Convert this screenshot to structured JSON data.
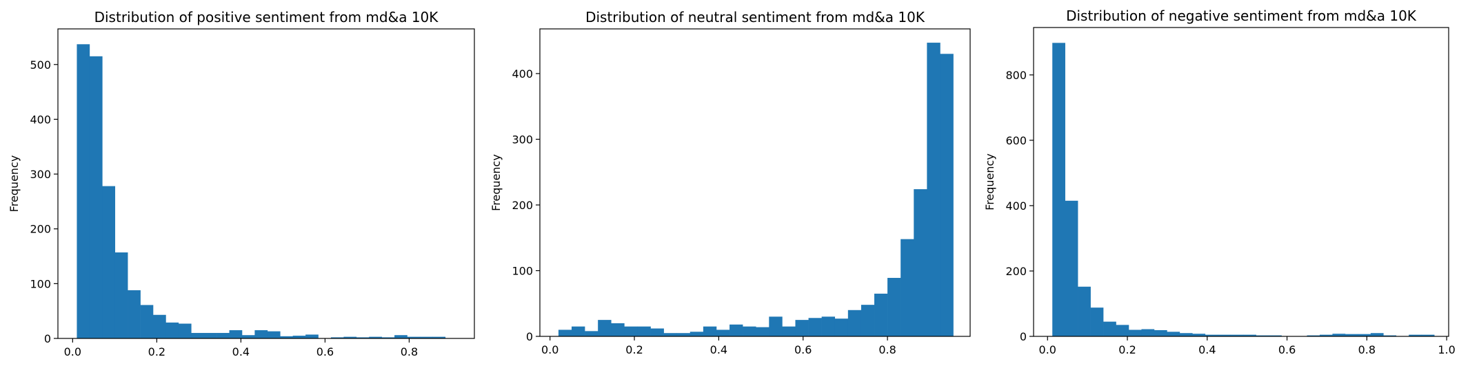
{
  "chart_data": [
    {
      "type": "bar",
      "title": "Distribution of positive sentiment from md&a 10K",
      "xlabel": "",
      "ylabel": "Frequency",
      "xlim": [
        -0.035,
        0.955
      ],
      "ylim": [
        0,
        565
      ],
      "bin_start": 0.01,
      "bin_width": 0.0302,
      "values": [
        537,
        515,
        278,
        157,
        88,
        61,
        43,
        29,
        27,
        10,
        10,
        10,
        15,
        6,
        15,
        13,
        4,
        5,
        7,
        0,
        2,
        3,
        2,
        3,
        2,
        6,
        3,
        3,
        3,
        0
      ],
      "xticks": [
        0.0,
        0.2,
        0.4,
        0.6,
        0.8
      ],
      "xtick_labels": [
        "0.0",
        "0.2",
        "0.4",
        "0.6",
        "0.8"
      ],
      "yticks": [
        0,
        100,
        200,
        300,
        400,
        500
      ],
      "ytick_labels": [
        "0",
        "100",
        "200",
        "300",
        "400",
        "500"
      ],
      "color": "#1f77b4"
    },
    {
      "type": "bar",
      "title": "Distribution of neutral sentiment from md&a 10K",
      "xlabel": "",
      "ylabel": "Frequency",
      "xlim": [
        -0.024,
        0.996
      ],
      "ylim": [
        0,
        468
      ],
      "bin_start": 0.02,
      "bin_width": 0.0312,
      "values": [
        10,
        15,
        8,
        25,
        20,
        15,
        15,
        12,
        5,
        5,
        7,
        15,
        10,
        18,
        15,
        14,
        30,
        15,
        25,
        28,
        30,
        27,
        40,
        48,
        65,
        89,
        148,
        224,
        447,
        430
      ],
      "xticks": [
        0.0,
        0.2,
        0.4,
        0.6,
        0.8
      ],
      "xtick_labels": [
        "0.0",
        "0.2",
        "0.4",
        "0.6",
        "0.8"
      ],
      "yticks": [
        0,
        100,
        200,
        300,
        400
      ],
      "ytick_labels": [
        "0",
        "100",
        "200",
        "300",
        "400"
      ],
      "color": "#1f77b4"
    },
    {
      "type": "bar",
      "title": "Distribution of negative sentiment from md&a 10K",
      "xlabel": "",
      "ylabel": "Frequency",
      "xlim": [
        -0.035,
        1.005
      ],
      "ylim": [
        0,
        945
      ],
      "bin_start": 0.012,
      "bin_width": 0.0319,
      "values": [
        898,
        415,
        152,
        88,
        45,
        35,
        20,
        22,
        19,
        14,
        10,
        8,
        5,
        5,
        5,
        5,
        3,
        3,
        0,
        0,
        3,
        5,
        8,
        7,
        7,
        10,
        3,
        0,
        5,
        5
      ],
      "xticks": [
        0.0,
        0.2,
        0.4,
        0.6,
        0.8,
        1.0
      ],
      "xtick_labels": [
        "0.0",
        "0.2",
        "0.4",
        "0.6",
        "0.8",
        "1.0"
      ],
      "yticks": [
        0,
        200,
        400,
        600,
        800
      ],
      "ytick_labels": [
        "0",
        "200",
        "400",
        "600",
        "800"
      ],
      "color": "#1f77b4"
    }
  ]
}
